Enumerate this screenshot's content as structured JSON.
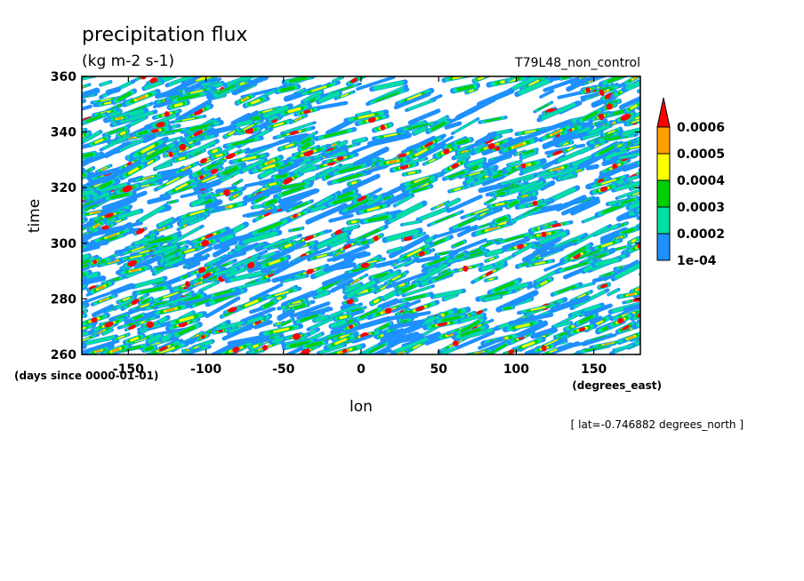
{
  "chart_data": {
    "type": "heatmap",
    "title": "precipitation flux",
    "units": "(kg m-2 s-1)",
    "case_label": "T79L48_non_control",
    "xlabel": "lon",
    "x_units": "(degrees_east)",
    "ylabel": "time",
    "y_units": "(days since 0000-01-01)",
    "footnote": "[ lat=-0.746882 degrees_north ]",
    "xlim": [
      -180,
      180
    ],
    "ylim": [
      260,
      360
    ],
    "x_ticks": [
      "-150",
      "-100",
      "-50",
      "0",
      "50",
      "100",
      "150"
    ],
    "x_tick_values": [
      -150,
      -100,
      -50,
      0,
      50,
      100,
      150
    ],
    "y_ticks": [
      "260",
      "280",
      "300",
      "320",
      "340",
      "360"
    ],
    "y_tick_values": [
      260,
      280,
      300,
      320,
      340,
      360
    ],
    "colorbar": {
      "levels": [
        "1e-04",
        "0.0002",
        "0.0003",
        "0.0004",
        "0.0005",
        "0.0006"
      ],
      "level_values": [
        0.0001,
        0.0002,
        0.0003,
        0.0004,
        0.0005,
        0.0006
      ],
      "colors": [
        "#1e90ff",
        "#00e0a0",
        "#00d000",
        "#ffff00",
        "#ffa000",
        "#ff0000"
      ],
      "extend": "max"
    }
  }
}
